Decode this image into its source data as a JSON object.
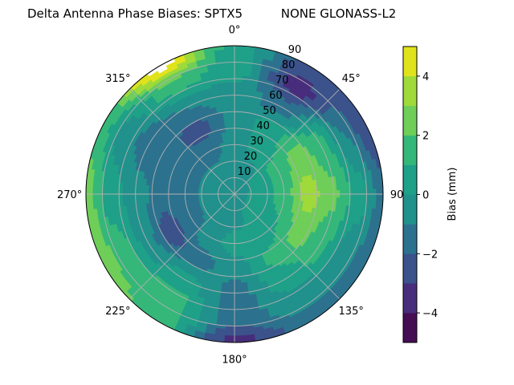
{
  "chart_data": {
    "type": "heatmap",
    "subtype": "polar-contourf",
    "title": "Delta Antenna Phase Biases: SPTX5          NONE GLONASS-L2",
    "angular_direction": "clockwise",
    "zero_location": "top",
    "angular_tick_labels": [
      "0°",
      "45°",
      "90°",
      "135°",
      "180°",
      "225°",
      "270°",
      "315°"
    ],
    "angular_ticks": [
      0,
      45,
      90,
      135,
      180,
      225,
      270,
      315
    ],
    "radial_ticks": [
      10,
      20,
      30,
      40,
      50,
      60,
      70,
      80,
      90
    ],
    "radial_tick_labels": [
      "10",
      "20",
      "30",
      "40",
      "50",
      "60",
      "70",
      "80",
      "90"
    ],
    "rlim": [
      0,
      90
    ],
    "grid": true,
    "azimuth_deg": [
      0,
      30,
      60,
      90,
      120,
      150,
      180,
      210,
      240,
      270,
      300,
      330
    ],
    "radius_deg": [
      0,
      15,
      30,
      45,
      60,
      75,
      90
    ],
    "bias_mm": [
      [
        -0.5,
        -0.5,
        -0.5,
        -0.7,
        -0.5,
        0.5,
        0.5
      ],
      [
        -0.5,
        -0.3,
        0.3,
        0.5,
        -1.5,
        -3.5,
        -2.5
      ],
      [
        -0.5,
        0.2,
        1.5,
        2.5,
        1.5,
        -1.0,
        -3.0
      ],
      [
        -0.5,
        0.3,
        1.5,
        3.5,
        2.2,
        0.5,
        -1.5
      ],
      [
        -0.5,
        0.3,
        1.0,
        2.5,
        1.5,
        -0.5,
        -1.5
      ],
      [
        -0.5,
        0.2,
        0.5,
        1.2,
        0.5,
        -0.5,
        -1.5
      ],
      [
        -0.5,
        -0.5,
        0.5,
        -0.5,
        -1.5,
        -1.5,
        -3.5
      ],
      [
        -0.5,
        -0.5,
        -0.5,
        -1.5,
        0.5,
        1.5,
        1.5
      ],
      [
        -0.5,
        -0.5,
        -1.5,
        -2.5,
        -0.5,
        1.5,
        2.5
      ],
      [
        -0.5,
        -0.5,
        -1.5,
        -1.5,
        -0.5,
        0.5,
        2.5
      ],
      [
        -0.5,
        -0.5,
        -1.5,
        -1.5,
        -1.5,
        -0.5,
        1.5
      ],
      [
        -0.5,
        -0.5,
        -1.5,
        -2.5,
        -1.0,
        1.5,
        5.5
      ]
    ],
    "levels": [
      -5,
      -4,
      -3,
      -2,
      -1,
      0,
      1,
      2,
      3,
      4,
      5
    ],
    "colormap": "viridis",
    "level_colors": [
      "#450d54",
      "#472d7b",
      "#3b528b",
      "#2c728e",
      "#21918c",
      "#1fa088",
      "#35b779",
      "#6ece58",
      "#9fda3a",
      "#e0e31c"
    ],
    "colorbar": {
      "label": "Bias (mm)",
      "ticks": [
        -4,
        -2,
        0,
        2,
        4
      ],
      "tick_labels": [
        "−4",
        "−2",
        "0",
        "2",
        "4"
      ],
      "range": [
        -5,
        5
      ]
    }
  }
}
